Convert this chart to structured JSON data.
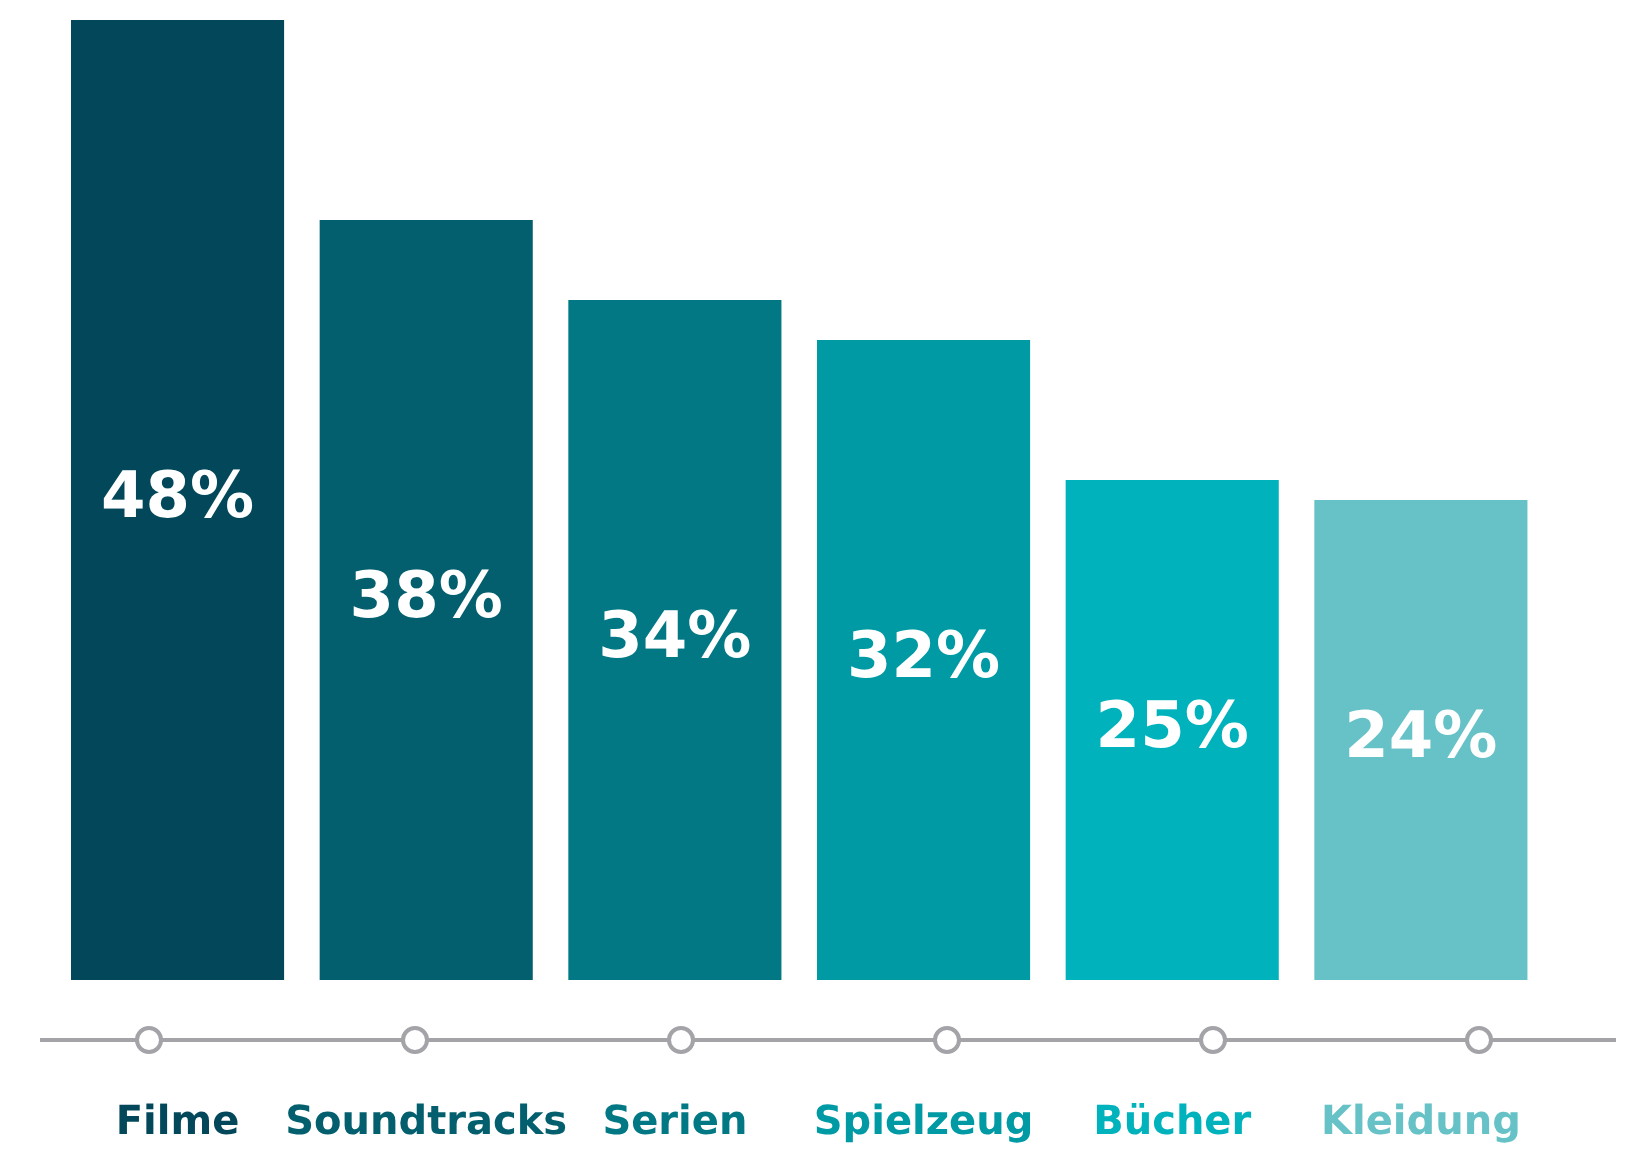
{
  "chart_data": {
    "type": "bar",
    "categories": [
      "Filme",
      "Soundtracks",
      "Serien",
      "Spielzeug",
      "Bücher",
      "Kleidung"
    ],
    "values": [
      48,
      38,
      34,
      32,
      25,
      24
    ],
    "value_labels": [
      "48%",
      "38%",
      "34%",
      "32%",
      "25%",
      "24%"
    ],
    "colors": [
      "#02485a",
      "#035f6e",
      "#017883",
      "#009aa5",
      "#00b2bc",
      "#66c2c6"
    ],
    "grid": false,
    "legend": false
  }
}
